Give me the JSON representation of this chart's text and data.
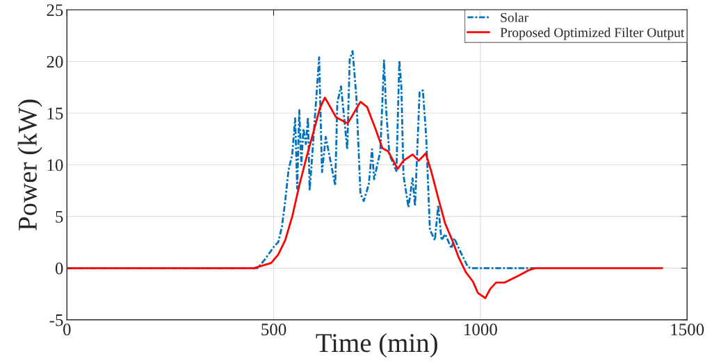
{
  "chart_data": {
    "type": "line",
    "xlabel": "Time (min)",
    "ylabel": "Power (kW)",
    "xlim": [
      0,
      1500
    ],
    "xticks": [
      0,
      500,
      1000,
      1500
    ],
    "ylim": [
      -5,
      25
    ],
    "yticks": [
      -5,
      0,
      5,
      10,
      15,
      20,
      25
    ],
    "grid": true,
    "legend": "top right",
    "marker": "none",
    "series": [
      {
        "name": "Solar",
        "color": "#0072bd",
        "line_style": "dashdot",
        "x": [
          0,
          461,
          478,
          503,
          511,
          520,
          528,
          536,
          545,
          552,
          557,
          562,
          567,
          572,
          578,
          583,
          587,
          590,
          610,
          617,
          626,
          649,
          654,
          663,
          678,
          684,
          691,
          700,
          710,
          718,
          730,
          738,
          743,
          758,
          767,
          772,
          780,
          797,
          804,
          809,
          814,
          826,
          836,
          842,
          853,
          861,
          869,
          878,
          890,
          898,
          906,
          915,
          930,
          937,
          948,
          970,
          977,
          1133
        ],
        "values": [
          0,
          0,
          0.8,
          2.2,
          2.5,
          4,
          6.5,
          9.5,
          11,
          14.5,
          7.7,
          15.3,
          10,
          13.5,
          12,
          14.6,
          7.6,
          9,
          20.4,
          9.3,
          12.7,
          8,
          16,
          17.6,
          11.5,
          20.2,
          21,
          16.6,
          7.2,
          6.5,
          8.1,
          11.5,
          8.6,
          11.3,
          20.1,
          15.4,
          11,
          9.4,
          20.1,
          17.5,
          9,
          5.9,
          8.7,
          6,
          17,
          17.2,
          12.7,
          3.7,
          2.7,
          6.1,
          2.7,
          3.3,
          1.9,
          2.9,
          1.9,
          0.1,
          0,
          0
        ]
      },
      {
        "name": "Proposed Optimized Filter Output",
        "color": "#ff0000",
        "line_style": "solid",
        "x": [
          0,
          452,
          494,
          511,
          528,
          545,
          562,
          578,
          595,
          612,
          624,
          651,
          679,
          710,
          726,
          747,
          763,
          777,
          800,
          814,
          836,
          851,
          868,
          881,
          898,
          915,
          932,
          948,
          965,
          982,
          994,
          1012,
          1024,
          1038,
          1058,
          1094,
          1117,
          1133,
          1440
        ],
        "values": [
          0,
          0,
          0.5,
          1.3,
          2.7,
          5,
          8,
          10.5,
          13,
          15.5,
          16.5,
          14.6,
          14,
          16.1,
          15.6,
          13.4,
          11.6,
          11.3,
          9.6,
          10.4,
          11,
          10.4,
          11.1,
          9.4,
          6.8,
          4.3,
          2.7,
          1,
          -0.4,
          -1.3,
          -2.4,
          -2.9,
          -2,
          -1.4,
          -1.4,
          -0.7,
          -0.2,
          0,
          0
        ]
      }
    ]
  }
}
